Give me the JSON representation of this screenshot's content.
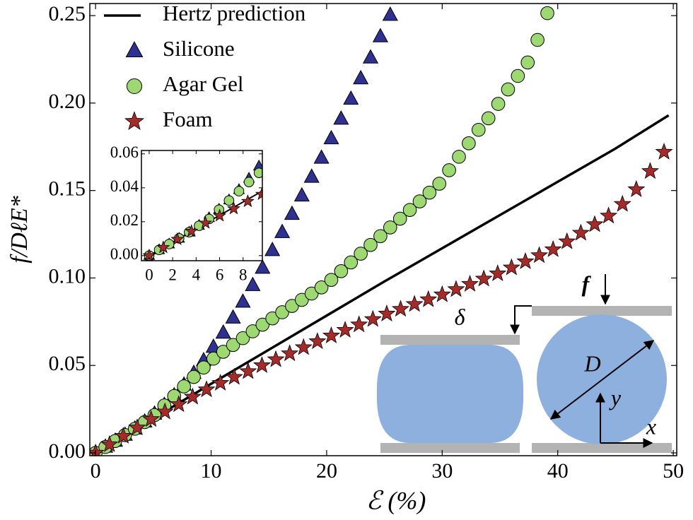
{
  "chart_data": {
    "type": "scatter",
    "xlabel": "ℰ (%)",
    "ylabel": "f/DℓE*",
    "xlim": [
      -0.5,
      50.3
    ],
    "ylim": [
      -0.0016,
      0.2569
    ],
    "xticks": [
      0,
      10,
      20,
      30,
      40,
      50
    ],
    "yticks": [
      {
        "value": 0,
        "label": "0.00"
      },
      {
        "value": 0.05,
        "label": "0.05"
      },
      {
        "value": 0.1,
        "label": "0.10"
      },
      {
        "value": 0.15,
        "label": "0.15"
      },
      {
        "value": 0.2,
        "label": "0.20"
      },
      {
        "value": 0.25,
        "label": "0.25"
      }
    ],
    "legend": "upper left",
    "series": [
      {
        "name": "Hertz prediction",
        "marker": "line",
        "color": "#000000",
        "x": [
          0,
          5,
          10,
          15,
          20,
          25,
          30,
          35,
          40,
          45,
          49.6
        ],
        "values": [
          0,
          0.0198,
          0.0395,
          0.059,
          0.0785,
          0.098,
          0.117,
          0.136,
          0.155,
          0.174,
          0.193
        ]
      },
      {
        "name": "Silicone",
        "marker": "triangle",
        "color": "#2e3192",
        "x": [
          0,
          0.85,
          1.7,
          2.55,
          3.4,
          4.25,
          5.1,
          5.95,
          6.8,
          7.65,
          8.5,
          9.35,
          10.2,
          11.05,
          11.9,
          12.75,
          13.6,
          14.45,
          15.3,
          16.15,
          17,
          17.85,
          18.7,
          19.55,
          20.4,
          21.25,
          22.1,
          22.95,
          23.8,
          24.65,
          25.5
        ],
        "values": [
          0,
          0.0034,
          0.0068,
          0.0102,
          0.0138,
          0.0178,
          0.0223,
          0.0273,
          0.0328,
          0.0389,
          0.0456,
          0.0528,
          0.0605,
          0.0686,
          0.0772,
          0.0863,
          0.0958,
          0.1057,
          0.1158,
          0.1261,
          0.1365,
          0.147,
          0.1577,
          0.1686,
          0.1797,
          0.1909,
          0.2023,
          0.214,
          0.2259,
          0.238,
          0.2503
        ]
      },
      {
        "name": "Agar Gel",
        "marker": "circle",
        "color": "#9dd870",
        "x": [
          0,
          0.85,
          1.7,
          2.55,
          3.4,
          4.25,
          5.1,
          5.95,
          6.8,
          7.65,
          8.5,
          9.35,
          10.2,
          11.05,
          11.9,
          12.75,
          13.6,
          14.45,
          15.3,
          16.15,
          17,
          17.85,
          18.7,
          19.55,
          20.4,
          21.25,
          22.1,
          22.95,
          23.8,
          24.65,
          25.5,
          26.35,
          27.2,
          28.05,
          28.9,
          29.75,
          30.6,
          31.45,
          32.3,
          33.15,
          34,
          34.85,
          35.7,
          36.55,
          37.4,
          38.25,
          39.1
        ],
        "values": [
          0,
          0.0034,
          0.0068,
          0.0102,
          0.0138,
          0.0176,
          0.0216,
          0.0271,
          0.0325,
          0.038,
          0.0434,
          0.0488,
          0.0539,
          0.0578,
          0.0617,
          0.0656,
          0.0695,
          0.0733,
          0.0769,
          0.0804,
          0.084,
          0.0875,
          0.0911,
          0.0946,
          0.0989,
          0.1039,
          0.1089,
          0.1139,
          0.1189,
          0.1239,
          0.1289,
          0.1339,
          0.1389,
          0.1438,
          0.1488,
          0.1539,
          0.1616,
          0.1693,
          0.177,
          0.1847,
          0.1913,
          0.1995,
          0.2078,
          0.2155,
          0.2232,
          0.2361,
          0.2514
        ]
      },
      {
        "name": "Foam",
        "marker": "star",
        "color": "#a52a2a",
        "x": [
          0,
          1.2,
          2.4,
          3.6,
          4.8,
          6,
          7.2,
          8.4,
          9.6,
          10.8,
          12,
          13.2,
          14.4,
          15.6,
          16.8,
          18,
          19.2,
          20.4,
          21.6,
          22.8,
          24,
          25.2,
          26.4,
          27.6,
          28.8,
          30,
          31.2,
          32.4,
          33.6,
          34.8,
          36,
          37.2,
          38.4,
          39.6,
          40.8,
          42,
          43.2,
          44.4,
          45.6,
          46.8,
          48,
          49.2
        ],
        "values": [
          0,
          0.0048,
          0.0096,
          0.0144,
          0.0192,
          0.0235,
          0.0277,
          0.032,
          0.0362,
          0.0399,
          0.0433,
          0.0466,
          0.05,
          0.0534,
          0.0568,
          0.0603,
          0.0637,
          0.067,
          0.0702,
          0.0733,
          0.0764,
          0.0795,
          0.0822,
          0.085,
          0.0877,
          0.0905,
          0.0935,
          0.0965,
          0.0995,
          0.1025,
          0.1059,
          0.1094,
          0.1129,
          0.1163,
          0.1208,
          0.1257,
          0.1306,
          0.1355,
          0.1422,
          0.1506,
          0.161,
          0.172
        ]
      }
    ],
    "inset": {
      "xlim": [
        -0.66,
        9.64
      ],
      "ylim": [
        -0.003,
        0.062
      ],
      "xticks": [
        0,
        2,
        4,
        6,
        8
      ],
      "yticks": [
        {
          "value": 0,
          "label": "0.00"
        },
        {
          "value": 0.02,
          "label": "0.02"
        },
        {
          "value": 0.04,
          "label": "0.04"
        },
        {
          "value": 0.06,
          "label": "0.06"
        }
      ]
    },
    "annotations": [
      "δ",
      "f",
      "D",
      "y",
      "x"
    ]
  }
}
